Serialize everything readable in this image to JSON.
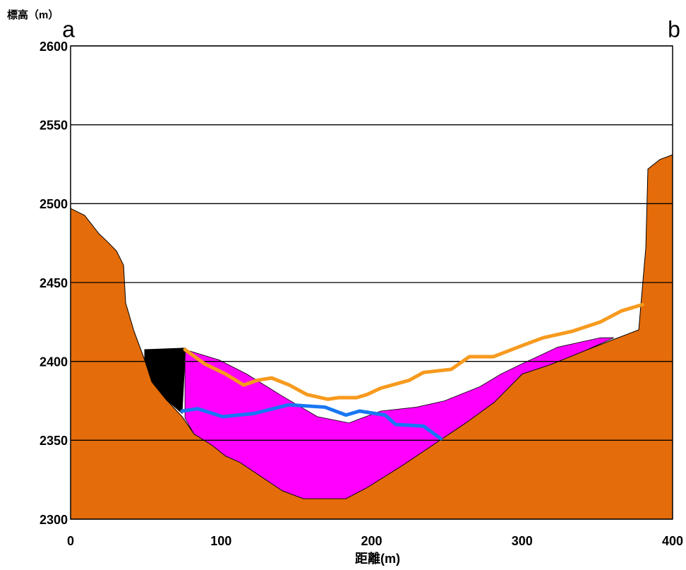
{
  "chart_data": {
    "type": "profile",
    "ylabel": "標高（m）",
    "xlabel": "距離(m)",
    "annotations": [
      "a",
      "b"
    ],
    "xlim": [
      0,
      400
    ],
    "ylim": [
      2300,
      2600
    ],
    "xticks": [
      0,
      100,
      200,
      300,
      400
    ],
    "yticks": [
      2300,
      2350,
      2400,
      2450,
      2500,
      2550,
      2600
    ],
    "grid": true,
    "series": [
      {
        "kind": "area",
        "color": "#e46c0a",
        "x": [
          0,
          9.4,
          18.8,
          24.4,
          30.5,
          35.2,
          36.6,
          42.2,
          49.2,
          54,
          63.3,
          74.1,
          82,
          93.8,
          103,
          112.5,
          126.6,
          140.7,
          154.7,
          168.8,
          182.9,
          197,
          208.7,
          220.4,
          234.5,
          243.8,
          262.6,
          281.4,
          300.1,
          318.9,
          342.3,
          361.1,
          377.5,
          382.2,
          383.6,
          391.6,
          400
        ],
        "values": [
          2497,
          2492.5,
          2481,
          2476,
          2470,
          2461,
          2437,
          2419,
          2401,
          2387,
          2376,
          2365,
          2354,
          2347,
          2340,
          2336,
          2327,
          2318,
          2313,
          2313,
          2313,
          2320,
          2327,
          2334,
          2343,
          2349,
          2361,
          2374,
          2392,
          2398,
          2407,
          2414,
          2420,
          2472,
          2522,
          2528,
          2531
        ]
      },
      {
        "kind": "band",
        "color": "#ff00ff",
        "upper": {
          "x": [
            76,
            98.5,
            117,
            140.7,
            164,
            185,
            206,
            229.8,
            248.5,
            272,
            286,
            300,
            323.6,
            352,
            361
          ],
          "values": [
            2407.5,
            2401,
            2392,
            2378,
            2365,
            2361,
            2368.5,
            2371,
            2375,
            2384,
            2392,
            2398.5,
            2409,
            2415,
            2415
          ]
        },
        "lower": {
          "x": [
            76,
            82,
            93.8,
            103,
            112.5,
            126.6,
            140.7,
            154.7,
            168.8,
            182.9,
            197,
            208.7,
            220.4,
            234.5,
            243.8,
            262.6,
            281.4,
            300.1,
            318.9,
            342.3,
            361
          ],
          "values": [
            2364,
            2354,
            2347,
            2340,
            2336,
            2327,
            2318,
            2313,
            2313,
            2313,
            2320,
            2327,
            2334,
            2343,
            2349,
            2361,
            2374,
            2392,
            2398,
            2407,
            2415
          ]
        }
      },
      {
        "kind": "band",
        "color": "#000000",
        "upper": {
          "x": [
            49.2,
            76.4
          ],
          "values": [
            2407.5,
            2408.5
          ]
        },
        "lower": {
          "x": [
            49.2,
            54,
            63.3,
            74.1
          ],
          "values": [
            2401,
            2387,
            2376,
            2367
          ]
        }
      },
      {
        "kind": "line",
        "color": "#f79a1e",
        "x": [
          76,
          89,
          103,
          115,
          124,
          133.6,
          145.4,
          157,
          171,
          178,
          190,
          197,
          206,
          225,
          234.5,
          253,
          265,
          281,
          300,
          314,
          333,
          352,
          366,
          380
        ],
        "values": [
          2407.5,
          2398.5,
          2392,
          2385,
          2388,
          2389.5,
          2385,
          2379,
          2376,
          2377,
          2377,
          2379,
          2383,
          2388,
          2393,
          2395,
          2403,
          2403,
          2410,
          2415,
          2419,
          2425,
          2432,
          2436
        ]
      },
      {
        "kind": "line",
        "color": "#1877f2",
        "x": [
          74,
          84.4,
          101,
          122,
          145,
          169,
          183,
          192,
          209,
          216,
          234.5,
          246
        ],
        "values": [
          2368.5,
          2370,
          2365,
          2367,
          2372.5,
          2371,
          2366,
          2368.5,
          2366,
          2360,
          2359,
          2351
        ]
      }
    ]
  }
}
